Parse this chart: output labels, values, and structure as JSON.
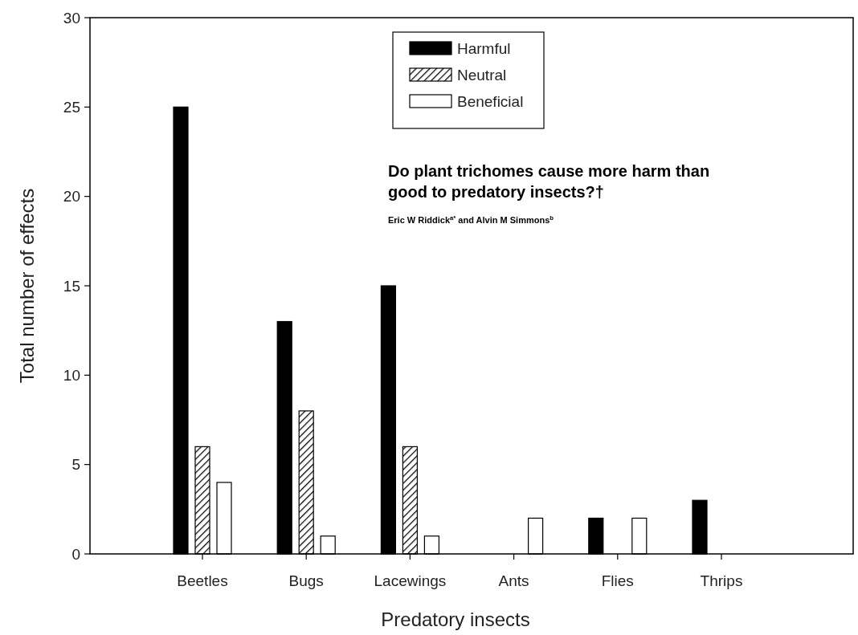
{
  "chart_data": {
    "type": "bar",
    "xlabel": "Predatory insects",
    "ylabel": "Total number of effects",
    "categories": [
      "Beetles",
      "Bugs",
      "Lacewings",
      "Ants",
      "Flies",
      "Thrips"
    ],
    "series": [
      {
        "name": "Harmful",
        "color": "#000000",
        "values": [
          25,
          13,
          15,
          0,
          2,
          3
        ]
      },
      {
        "name": "Neutral",
        "color": "#000000",
        "values": [
          6,
          8,
          6,
          0,
          0,
          0
        ]
      },
      {
        "name": "Beneficial",
        "color": "#ffffff",
        "values": [
          4,
          1,
          1,
          2,
          2,
          0
        ]
      }
    ],
    "ylim": [
      0,
      30
    ],
    "yticks": [
      0,
      5,
      10,
      15,
      20,
      25,
      30
    ],
    "grid": false,
    "legend": "top",
    "annotations": [
      "Do plant trichomes cause more harm than good to predatory insects?†",
      "Eric W Riddick$^{a*}$ and Alvin M Simmons$^{b}$"
    ]
  }
}
